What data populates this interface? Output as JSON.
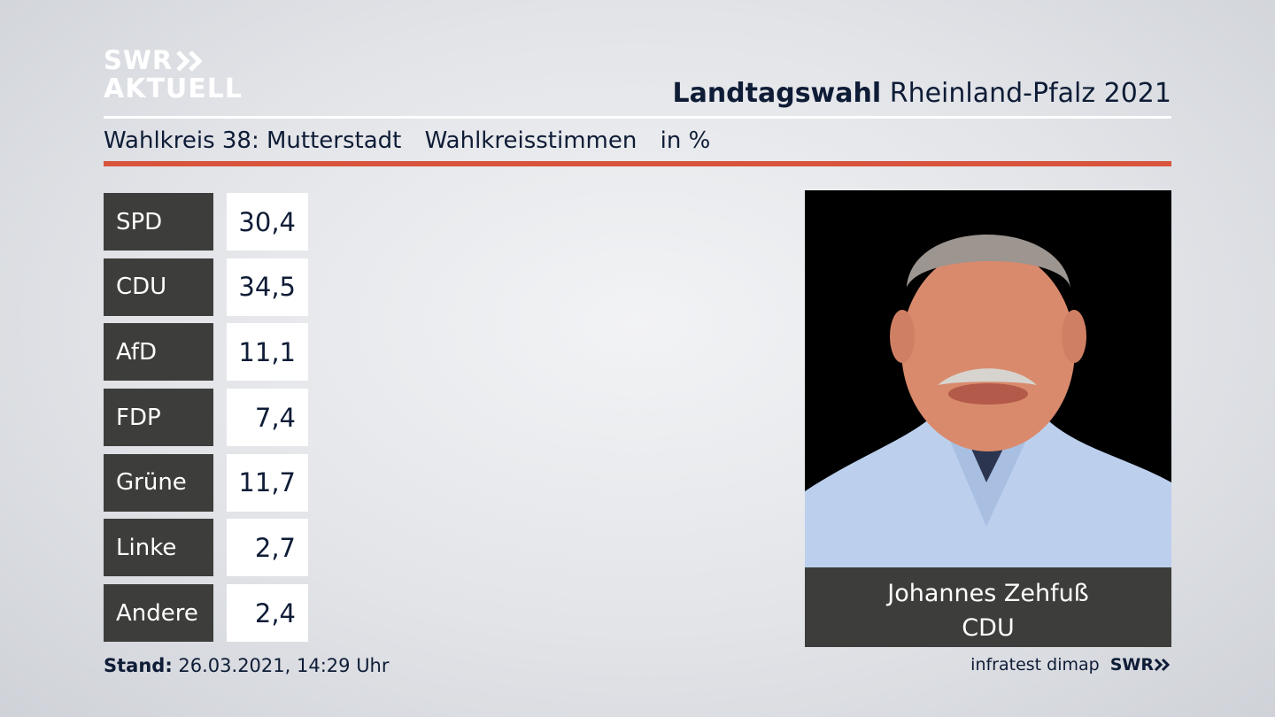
{
  "header": {
    "logo_line1": "SWR",
    "logo_line2": "AKTUELL",
    "title_bold": "Landtagswahl",
    "title_rest": "Rheinland-Pfalz 2021"
  },
  "subheader": {
    "district": "Wahlkreis 38: Mutterstadt",
    "vote_type": "Wahlkreisstimmen",
    "unit": "in %"
  },
  "results": [
    {
      "party": "SPD",
      "value": "30,4"
    },
    {
      "party": "CDU",
      "value": "34,5"
    },
    {
      "party": "AfD",
      "value": "11,1"
    },
    {
      "party": "FDP",
      "value": "7,4"
    },
    {
      "party": "Grüne",
      "value": "11,7"
    },
    {
      "party": "Linke",
      "value": "2,7"
    },
    {
      "party": "Andere",
      "value": "2,4"
    }
  ],
  "candidate": {
    "name": "Johannes Zehfuß",
    "party": "CDU"
  },
  "footer": {
    "stand_label": "Stand:",
    "stand_value": "26.03.2021, 14:29 Uhr",
    "source": "infratest dimap",
    "source_logo": "SWR"
  },
  "colors": {
    "accent_red": "#d9543c",
    "party_box": "#3d3d3b",
    "text_navy": "#0e1c36"
  }
}
